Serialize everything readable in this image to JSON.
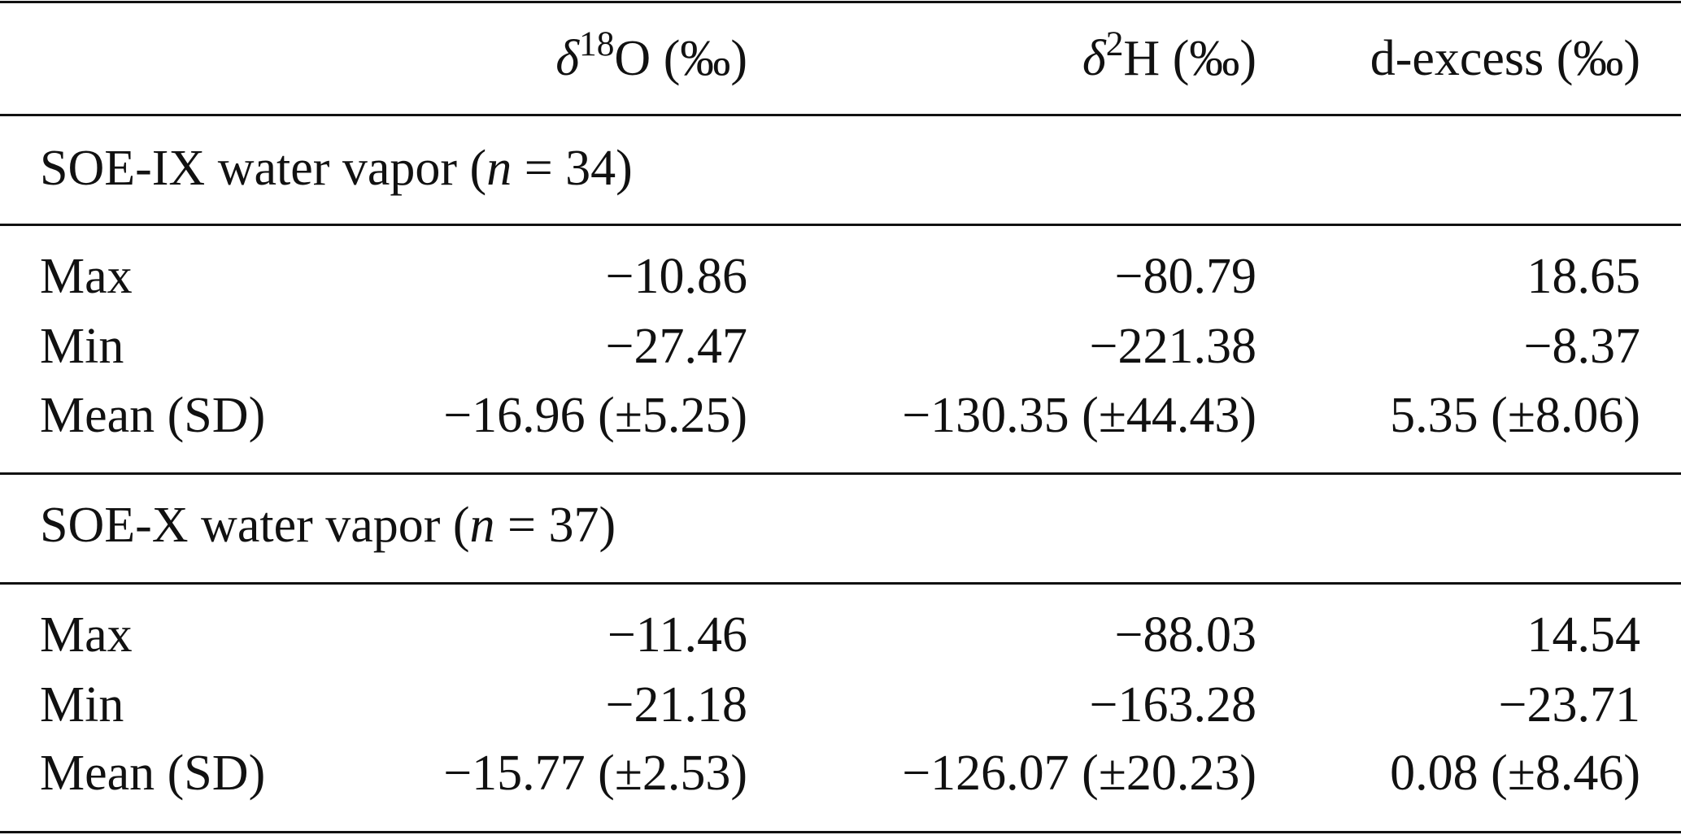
{
  "table": {
    "columns": [
      {
        "symbol": "δ",
        "sup": "18",
        "text": "O (‰)"
      },
      {
        "symbol": "δ",
        "sup": "2",
        "text": "H (‰)"
      },
      {
        "text": "d-excess (‰)"
      }
    ],
    "groups": [
      {
        "title": {
          "before": "SOE-IX water vapor (",
          "italic": "n",
          "after": " = 34)"
        },
        "rows": [
          [
            "Max",
            "−10.86",
            "−80.79",
            "18.65"
          ],
          [
            "Min",
            "−27.47",
            "−221.38",
            "−8.37"
          ],
          [
            "Mean (SD)",
            "−16.96 (±5.25)",
            "−130.35 (±44.43)",
            "5.35 (±8.06)"
          ]
        ]
      },
      {
        "title": {
          "before": "SOE-X water vapor (",
          "italic": "n",
          "after": " = 37)"
        },
        "rows": [
          [
            "Max",
            "−11.46",
            "−88.03",
            "14.54"
          ],
          [
            "Min",
            "−21.18",
            "−163.28",
            "−23.71"
          ],
          [
            "Mean (SD)",
            "−15.77 (±2.53)",
            "−126.07 (±20.23)",
            "0.08 (±8.46)"
          ]
        ]
      }
    ]
  }
}
